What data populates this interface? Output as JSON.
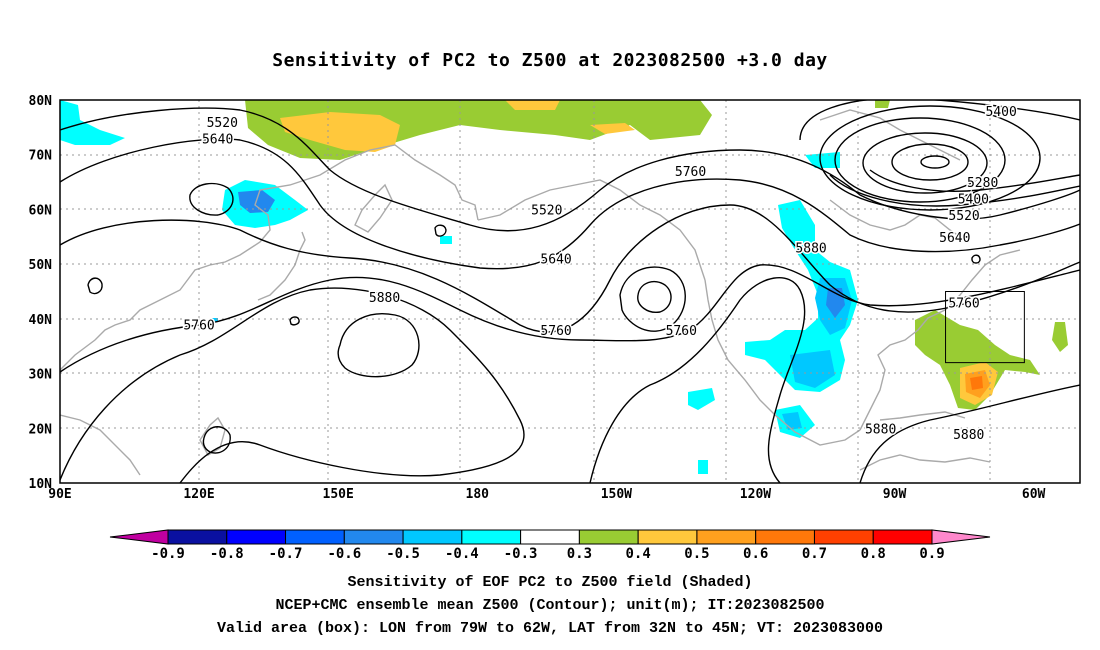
{
  "title": "Sensitivity of PC2 to Z500 at 2023082500 +3.0 day",
  "map": {
    "lon_range": [
      90,
      310
    ],
    "lat_range": [
      10,
      80
    ],
    "lat_labels": [
      "80N",
      "70N",
      "60N",
      "50N",
      "40N",
      "30N",
      "20N",
      "10N"
    ],
    "lon_labels": [
      "90E",
      "120E",
      "150E",
      "180",
      "150W",
      "120W",
      "90W",
      "60W"
    ],
    "contour_labels": [
      {
        "text": "5520",
        "lon": 125,
        "lat": 76
      },
      {
        "text": "5640",
        "lon": 124,
        "lat": 73
      },
      {
        "text": "5400",
        "lon": 293,
        "lat": 78
      },
      {
        "text": "5280",
        "lon": 289,
        "lat": 65
      },
      {
        "text": "5400",
        "lon": 287,
        "lat": 62
      },
      {
        "text": "5520",
        "lon": 285,
        "lat": 59
      },
      {
        "text": "5640",
        "lon": 283,
        "lat": 55
      },
      {
        "text": "5760",
        "lon": 226,
        "lat": 67
      },
      {
        "text": "5520",
        "lon": 195,
        "lat": 60
      },
      {
        "text": "5640",
        "lon": 197,
        "lat": 51
      },
      {
        "text": "5880",
        "lon": 252,
        "lat": 53
      },
      {
        "text": "5880",
        "lon": 160,
        "lat": 44
      },
      {
        "text": "5760",
        "lon": 120,
        "lat": 39
      },
      {
        "text": "5760",
        "lon": 197,
        "lat": 38
      },
      {
        "text": "5760",
        "lon": 224,
        "lat": 38
      },
      {
        "text": "5760",
        "lon": 285,
        "lat": 43
      },
      {
        "text": "5880",
        "lon": 267,
        "lat": 20
      },
      {
        "text": "5880",
        "lon": 286,
        "lat": 19
      }
    ],
    "valid_box": {
      "lon": [
        281,
        298
      ],
      "lat": [
        32,
        45
      ]
    }
  },
  "colorbar": {
    "labels": [
      "-0.9",
      "-0.8",
      "-0.7",
      "-0.6",
      "-0.5",
      "-0.4",
      "-0.3",
      "0.3",
      "0.4",
      "0.5",
      "0.6",
      "0.7",
      "0.8",
      "0.9"
    ],
    "colors": [
      "#c000a0",
      "#0a10a0",
      "#0000ff",
      "#0060ff",
      "#2288ee",
      "#00c8ff",
      "#00ffff",
      "#ffffff",
      "#99cc33",
      "#ffc83c",
      "#ffa01e",
      "#ff780a",
      "#ff4000",
      "#ff0000",
      "#ff88cc"
    ]
  },
  "footer": {
    "line1": "Sensitivity of EOF PC2 to Z500 field (Shaded)",
    "line2": "NCEP+CMC ensemble mean Z500 (Contour); unit(m); IT:2023082500",
    "line3": "Valid area (box): LON from 79W to 62W, LAT from 32N to 45N; VT: 2023083000"
  }
}
